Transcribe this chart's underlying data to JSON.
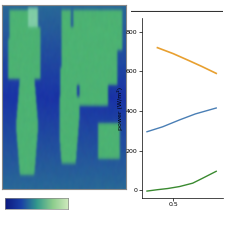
{
  "yticks": [
    0,
    200,
    400,
    600,
    800
  ],
  "ylabel": "power (W/m²)",
  "xtick_val": 0.5,
  "orange_line": {
    "x": [
      0.38,
      0.5,
      0.62,
      0.72,
      0.83
    ],
    "y": [
      720,
      690,
      655,
      625,
      590
    ],
    "color": "#e8a030",
    "linewidth": 1.2
  },
  "blue_line": {
    "x": [
      0.3,
      0.42,
      0.55,
      0.67,
      0.83
    ],
    "y": [
      295,
      320,
      355,
      385,
      415
    ],
    "color": "#4a7fb5",
    "linewidth": 1.0
  },
  "green_line": {
    "x": [
      0.3,
      0.38,
      0.46,
      0.55,
      0.65,
      0.72,
      0.83
    ],
    "y": [
      -5,
      2,
      8,
      18,
      35,
      58,
      95
    ],
    "color": "#3a8a30",
    "linewidth": 1.0
  },
  "background_color": "#ffffff",
  "border_color": "#888888",
  "colorbar_left_color": "#1a3a6a",
  "colorbar_right_color": "#c8e8a0",
  "top_line_color": "#333333"
}
